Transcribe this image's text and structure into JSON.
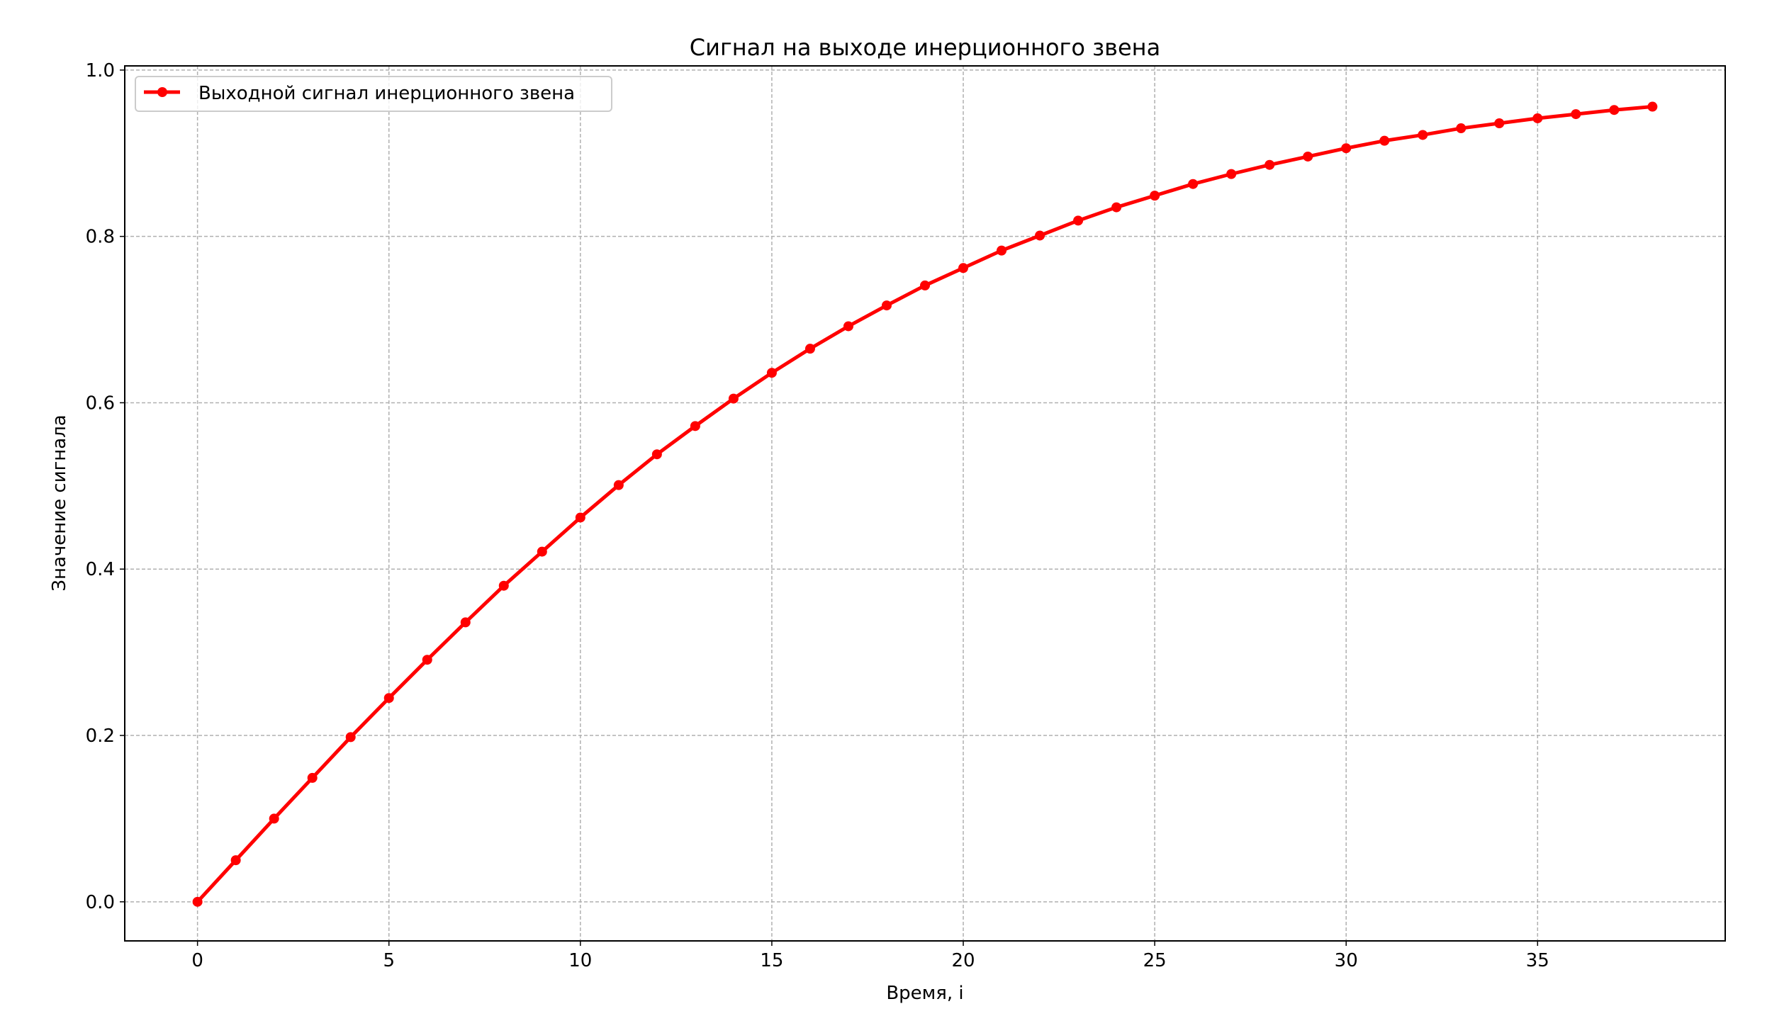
{
  "chart_data": {
    "type": "line",
    "title": "Сигнал на выходе инерционного звена",
    "xlabel": "Время, i",
    "ylabel": "Значение сигнала",
    "xlim": [
      -1.9,
      39.9
    ],
    "ylim": [
      -0.047,
      1.005
    ],
    "xticks": [
      0,
      5,
      10,
      15,
      20,
      25,
      30,
      35
    ],
    "yticks": [
      "0.0",
      "0.2",
      "0.4",
      "0.6",
      "0.8",
      "1.0"
    ],
    "grid": true,
    "legend_position": "top-left",
    "series": [
      {
        "name": "Выходной сигнал инерционного звена",
        "color": "#ff0000",
        "marker": "circle",
        "x": [
          0,
          1,
          2,
          3,
          4,
          5,
          6,
          7,
          8,
          9,
          10,
          11,
          12,
          13,
          14,
          15,
          16,
          17,
          18,
          19,
          20,
          21,
          22,
          23,
          24,
          25,
          26,
          27,
          28,
          29,
          30,
          31,
          32,
          33,
          34,
          35,
          36,
          37,
          38
        ],
        "y": [
          0.0,
          0.05,
          0.1,
          0.149,
          0.198,
          0.245,
          0.291,
          0.336,
          0.38,
          0.421,
          0.462,
          0.501,
          0.538,
          0.572,
          0.605,
          0.636,
          0.665,
          0.692,
          0.717,
          0.741,
          0.762,
          0.783,
          0.801,
          0.819,
          0.835,
          0.849,
          0.863,
          0.875,
          0.886,
          0.896,
          0.906,
          0.915,
          0.922,
          0.93,
          0.936,
          0.942,
          0.947,
          0.952,
          0.956
        ]
      }
    ]
  }
}
